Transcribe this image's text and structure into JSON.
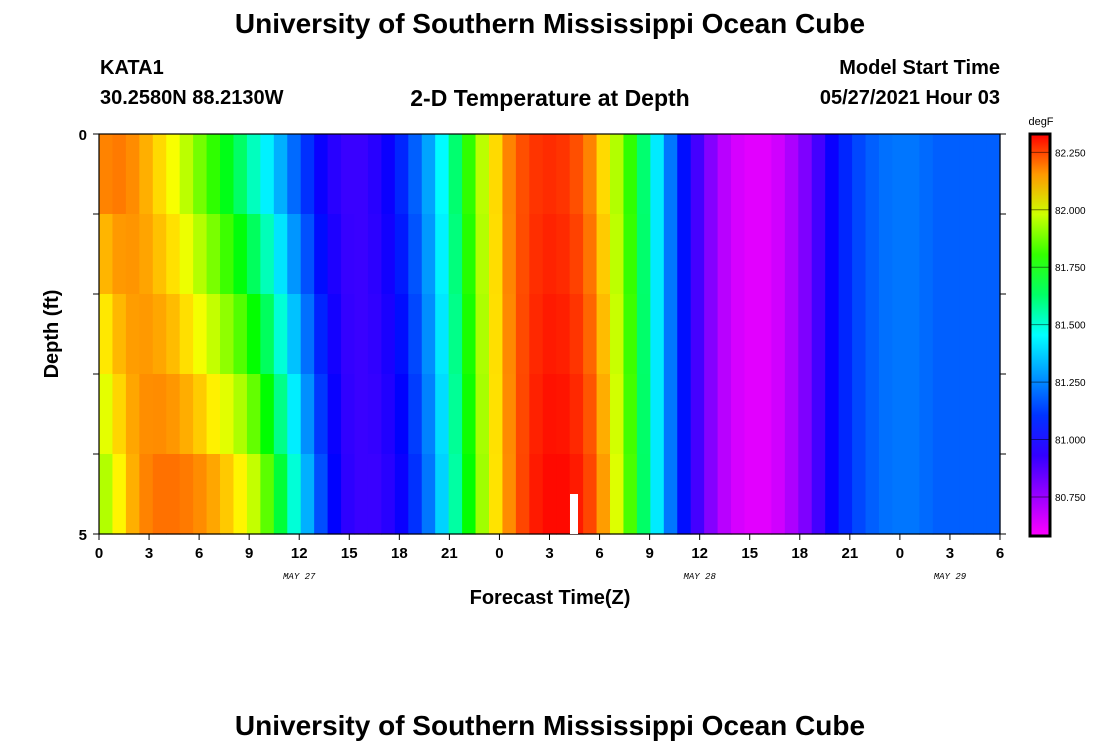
{
  "header": {
    "title": "University of Southern Mississippi Ocean Cube",
    "station": "KATA1",
    "coordinates": "30.2580N  88.2130W",
    "subtitle": "2-D Temperature at Depth",
    "model_start_label": "Model Start Time",
    "model_start_value": "05/27/2021 Hour 03"
  },
  "footer": {
    "title": "University of Southern Mississippi Ocean Cube"
  },
  "chart_data": {
    "type": "heatmap",
    "title": "2-D Temperature at Depth",
    "xlabel": "Forecast Time(Z)",
    "ylabel": "Depth (ft)",
    "x_ticks": [
      "0",
      "3",
      "6",
      "9",
      "12",
      "15",
      "18",
      "21",
      "0",
      "3",
      "6",
      "9",
      "12",
      "15",
      "18",
      "21",
      "0",
      "3",
      "6"
    ],
    "x_hours": [
      0,
      54
    ],
    "date_labels": [
      {
        "hour": 12,
        "text": "MAY 27"
      },
      {
        "hour": 36,
        "text": "MAY 28"
      },
      {
        "hour": 51,
        "text": "MAY 29"
      }
    ],
    "y_ticks": [
      "0",
      "5"
    ],
    "ylim": [
      0,
      5
    ],
    "depth_levels": [
      0,
      1,
      2,
      3,
      4,
      5
    ],
    "colorbar": {
      "unit": "degF",
      "min": 80.58,
      "max": 82.33,
      "ticks": [
        "82.250",
        "82.000",
        "81.750",
        "81.500",
        "81.250",
        "81.000",
        "80.750"
      ],
      "tick_values": [
        82.25,
        82.0,
        81.75,
        81.5,
        81.25,
        81.0,
        80.75
      ]
    },
    "surface_temps": [
      82.18,
      82.19,
      82.17,
      82.13,
      82.08,
      82.03,
      81.96,
      81.88,
      81.8,
      81.72,
      81.63,
      81.53,
      81.43,
      81.32,
      81.2,
      81.1,
      81.0,
      80.95,
      80.92,
      80.92,
      80.95,
      81.0,
      81.08,
      81.18,
      81.3,
      81.45,
      81.62,
      81.8,
      81.96,
      82.08,
      82.18,
      82.24,
      82.27,
      82.28,
      82.27,
      82.24,
      82.18,
      82.08,
      81.95,
      81.8,
      81.62,
      81.42,
      81.22,
      81.04,
      80.9,
      80.79,
      80.7,
      80.65,
      80.63,
      80.63,
      80.66,
      80.72,
      80.8,
      80.9,
      81.0,
      81.08,
      81.14,
      81.18,
      81.21,
      81.22,
      81.22,
      81.2,
      81.18,
      81.18,
      81.18,
      81.18,
      81.18
    ],
    "bottom_temps": [
      81.95,
      82.05,
      82.13,
      82.18,
      82.2,
      82.2,
      82.19,
      82.17,
      82.14,
      82.1,
      82.05,
      81.97,
      81.85,
      81.68,
      81.5,
      81.32,
      81.15,
      81.02,
      80.94,
      80.92,
      80.92,
      80.95,
      81.0,
      81.1,
      81.22,
      81.38,
      81.56,
      81.75,
      81.93,
      82.07,
      82.17,
      82.25,
      82.3,
      82.32,
      82.32,
      82.3,
      82.25,
      82.15,
      82.0,
      81.83,
      81.63,
      81.42,
      81.22,
      81.04,
      80.9,
      80.79,
      80.7,
      80.65,
      80.63,
      80.63,
      80.66,
      80.72,
      80.8,
      80.9,
      81.0,
      81.08,
      81.14,
      81.18,
      81.21,
      81.22,
      81.22,
      81.2,
      81.18,
      81.18,
      81.18,
      81.18,
      81.18
    ]
  }
}
